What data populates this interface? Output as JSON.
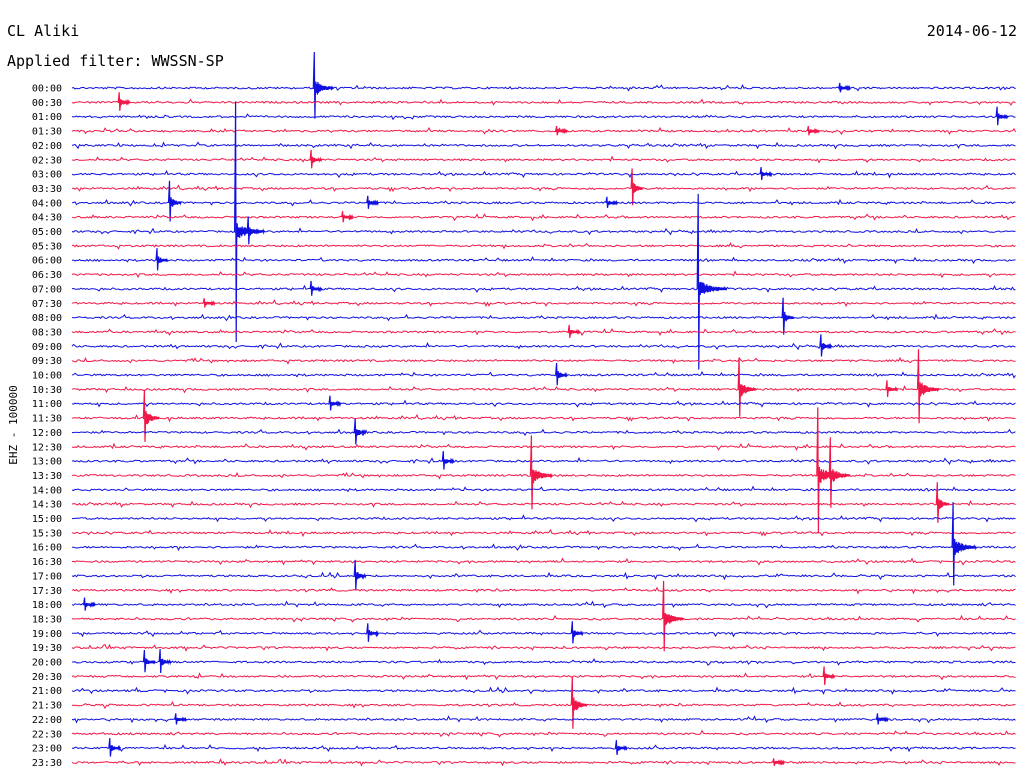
{
  "header": {
    "station": "CL Aliki",
    "date": "2014-06-12",
    "filter": "Applied filter: WWSSN-SP"
  },
  "chart_data": {
    "type": "line",
    "title": "CL Aliki",
    "subtitle": "Applied filter: WWSSN-SP",
    "date": "2014-06-12",
    "ylabel": "EHZ - 100000",
    "xlabel": "",
    "colors": {
      "blue": "#1010e0",
      "red": "#f01848"
    },
    "row_colors": [
      "blue",
      "red"
    ],
    "minutes_per_row": 30,
    "row_labels": [
      "00:00",
      "00:30",
      "01:00",
      "01:30",
      "02:00",
      "02:30",
      "03:00",
      "03:30",
      "04:00",
      "04:30",
      "05:00",
      "05:30",
      "06:00",
      "06:30",
      "07:00",
      "07:30",
      "08:00",
      "08:30",
      "09:00",
      "09:30",
      "10:00",
      "10:30",
      "11:00",
      "11:30",
      "12:00",
      "12:30",
      "13:00",
      "13:30",
      "14:00",
      "14:30",
      "15:00",
      "15:30",
      "16:00",
      "16:30",
      "17:00",
      "17:30",
      "18:00",
      "18:30",
      "19:00",
      "19:30",
      "20:00",
      "20:30",
      "21:00",
      "21:30",
      "22:00",
      "22:30",
      "23:00",
      "23:30"
    ],
    "events": [
      {
        "row": 0,
        "minute": 7.7,
        "amplitude": 36
      },
      {
        "row": 0,
        "minute": 24.4,
        "amplitude": 5
      },
      {
        "row": 1,
        "minute": 1.5,
        "amplitude": 10
      },
      {
        "row": 2,
        "minute": 29.4,
        "amplitude": 10
      },
      {
        "row": 3,
        "minute": 15.4,
        "amplitude": 5
      },
      {
        "row": 3,
        "minute": 23.4,
        "amplitude": 5
      },
      {
        "row": 5,
        "minute": 7.6,
        "amplitude": 10
      },
      {
        "row": 6,
        "minute": 21.9,
        "amplitude": 7
      },
      {
        "row": 7,
        "minute": 17.8,
        "amplitude": 20
      },
      {
        "row": 8,
        "minute": 3.1,
        "amplitude": 22
      },
      {
        "row": 8,
        "minute": 9.4,
        "amplitude": 7
      },
      {
        "row": 8,
        "minute": 17.0,
        "amplitude": 6
      },
      {
        "row": 9,
        "minute": 8.6,
        "amplitude": 6
      },
      {
        "row": 10,
        "minute": 5.2,
        "amplitude": 130
      },
      {
        "row": 10,
        "minute": 5.6,
        "amplitude": 15
      },
      {
        "row": 12,
        "minute": 2.7,
        "amplitude": 12
      },
      {
        "row": 14,
        "minute": 19.9,
        "amplitude": 95
      },
      {
        "row": 14,
        "minute": 7.6,
        "amplitude": 8
      },
      {
        "row": 15,
        "minute": 4.2,
        "amplitude": 5
      },
      {
        "row": 16,
        "minute": 22.6,
        "amplitude": 20
      },
      {
        "row": 17,
        "minute": 15.8,
        "amplitude": 7
      },
      {
        "row": 18,
        "minute": 23.8,
        "amplitude": 12
      },
      {
        "row": 20,
        "minute": 15.4,
        "amplitude": 12
      },
      {
        "row": 21,
        "minute": 21.2,
        "amplitude": 32
      },
      {
        "row": 21,
        "minute": 25.9,
        "amplitude": 9
      },
      {
        "row": 21,
        "minute": 26.9,
        "amplitude": 40
      },
      {
        "row": 22,
        "minute": 8.2,
        "amplitude": 8
      },
      {
        "row": 23,
        "minute": 2.3,
        "amplitude": 28
      },
      {
        "row": 24,
        "minute": 9.0,
        "amplitude": 14
      },
      {
        "row": 26,
        "minute": 11.8,
        "amplitude": 10
      },
      {
        "row": 27,
        "minute": 14.6,
        "amplitude": 40
      },
      {
        "row": 27,
        "minute": 23.7,
        "amplitude": 68
      },
      {
        "row": 27,
        "minute": 24.1,
        "amplitude": 38
      },
      {
        "row": 29,
        "minute": 27.5,
        "amplitude": 22
      },
      {
        "row": 32,
        "minute": 28.0,
        "amplitude": 45
      },
      {
        "row": 34,
        "minute": 9.0,
        "amplitude": 16
      },
      {
        "row": 36,
        "minute": 0.4,
        "amplitude": 7
      },
      {
        "row": 37,
        "minute": 18.8,
        "amplitude": 38
      },
      {
        "row": 38,
        "minute": 9.4,
        "amplitude": 10
      },
      {
        "row": 38,
        "minute": 15.9,
        "amplitude": 12
      },
      {
        "row": 40,
        "minute": 2.3,
        "amplitude": 12
      },
      {
        "row": 40,
        "minute": 2.8,
        "amplitude": 13
      },
      {
        "row": 41,
        "minute": 23.9,
        "amplitude": 10
      },
      {
        "row": 43,
        "minute": 15.9,
        "amplitude": 28
      },
      {
        "row": 44,
        "minute": 3.3,
        "amplitude": 6
      },
      {
        "row": 44,
        "minute": 25.6,
        "amplitude": 6
      },
      {
        "row": 46,
        "minute": 1.2,
        "amplitude": 10
      },
      {
        "row": 46,
        "minute": 17.3,
        "amplitude": 8
      },
      {
        "row": 47,
        "minute": 22.3,
        "amplitude": 4
      }
    ]
  }
}
